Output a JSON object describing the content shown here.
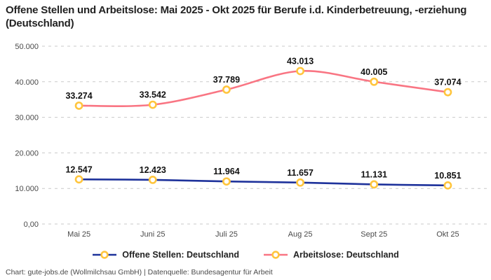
{
  "header": {
    "title": "Offene Stellen und Arbeitslose: Mai 2025 - Okt 2025 für Berufe i.d. Kinderbetreuung, -erziehung (Deutschland)"
  },
  "chart_data": {
    "type": "line",
    "title": "Offene Stellen und Arbeitslose: Mai 2025 - Okt 2025 für Berufe i.d. Kinderbetreuung, -erziehung (Deutschland)",
    "categories": [
      "Mai 25",
      "Juni 25",
      "Juli 25",
      "Aug 25",
      "Sept 25",
      "Okt 25"
    ],
    "series": [
      {
        "name": "Offene Stellen: Deutschland",
        "color": "#1e329b",
        "values": [
          12547,
          12423,
          11964,
          11657,
          11131,
          10851
        ]
      },
      {
        "name": "Arbeitslose: Deutschland",
        "color": "#f97583",
        "values": [
          33274,
          33542,
          37789,
          43013,
          40005,
          37074
        ]
      }
    ],
    "marker": {
      "ring_color": "#ffc53d",
      "fill_color": "#ffffff"
    },
    "xlabel": "",
    "ylabel": "",
    "ylim": [
      0,
      50000
    ],
    "yticks": [
      0,
      10000,
      20000,
      30000,
      40000,
      50000
    ],
    "ytick_labels": [
      "0,00",
      "10.000",
      "20.000",
      "30.000",
      "40.000",
      "50.000"
    ],
    "grid": "horizontal-dashed",
    "data_labels": true,
    "legend_position": "bottom"
  },
  "legend": {
    "items": [
      {
        "label": "Offene Stellen: Deutschland"
      },
      {
        "label": "Arbeitslose: Deutschland"
      }
    ]
  },
  "footer": {
    "text": "Chart: gute-jobs.de (Wollmilchsau GmbH) | Datenquelle: Bundesagentur für Arbeit"
  },
  "colors": {
    "grid": "#c9c9c9",
    "axis_text": "#4a4a4a",
    "data_label_text": "#111111",
    "title_text": "#222222"
  }
}
